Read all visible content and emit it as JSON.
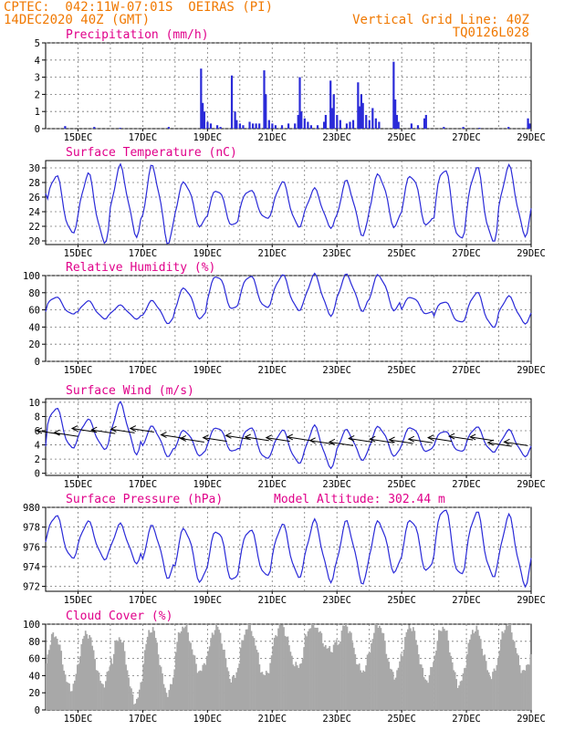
{
  "header": {
    "left_line1": "CPTEC:  042:11W-07:01S  OEIRAS (PI)",
    "left_line2": "14DEC2020 40Z (GMT)",
    "right_line1": "Vertical Grid Line: 40Z",
    "right_line2": "TQ0126L028"
  },
  "colors": {
    "header": "#f07800",
    "title": "#e0008a",
    "series": "#2a2ad8",
    "cloud": "#a8a8a8"
  },
  "x_ticks": [
    "15DEC",
    "17DEC",
    "19DEC",
    "21DEC",
    "23DEC",
    "25DEC",
    "27DEC",
    "29DEC"
  ],
  "chart_data": [
    {
      "type": "bar",
      "title": "Precipitation (mm/h)",
      "ylim": [
        0,
        5
      ],
      "yticks": [
        0,
        1,
        2,
        3,
        4,
        5
      ],
      "x_domain": [
        14.0,
        29.0
      ],
      "bars": [
        [
          14.6,
          0.15
        ],
        [
          15.5,
          0.1
        ],
        [
          16.3,
          0.05
        ],
        [
          17.8,
          0.1
        ],
        [
          18.8,
          3.5
        ],
        [
          18.85,
          1.5
        ],
        [
          18.9,
          1.0
        ],
        [
          19.0,
          0.4
        ],
        [
          19.1,
          0.3
        ],
        [
          19.3,
          0.2
        ],
        [
          19.4,
          0.1
        ],
        [
          19.75,
          3.1
        ],
        [
          19.85,
          1.0
        ],
        [
          19.9,
          0.5
        ],
        [
          20.0,
          0.3
        ],
        [
          20.1,
          0.2
        ],
        [
          20.3,
          0.4
        ],
        [
          20.4,
          0.3
        ],
        [
          20.5,
          0.3
        ],
        [
          20.6,
          0.3
        ],
        [
          20.75,
          3.4
        ],
        [
          20.8,
          2.0
        ],
        [
          20.9,
          0.5
        ],
        [
          21.0,
          0.3
        ],
        [
          21.1,
          0.2
        ],
        [
          21.3,
          0.2
        ],
        [
          21.5,
          0.3
        ],
        [
          21.7,
          0.3
        ],
        [
          21.8,
          0.8
        ],
        [
          21.85,
          3.0
        ],
        [
          21.9,
          1.0
        ],
        [
          22.0,
          0.6
        ],
        [
          22.1,
          0.4
        ],
        [
          22.2,
          0.2
        ],
        [
          22.4,
          0.2
        ],
        [
          22.6,
          0.4
        ],
        [
          22.65,
          0.8
        ],
        [
          22.8,
          2.8
        ],
        [
          22.85,
          1.2
        ],
        [
          22.9,
          2.0
        ],
        [
          23.0,
          0.8
        ],
        [
          23.1,
          0.5
        ],
        [
          23.3,
          0.3
        ],
        [
          23.4,
          0.4
        ],
        [
          23.5,
          0.5
        ],
        [
          23.65,
          2.7
        ],
        [
          23.7,
          1.3
        ],
        [
          23.75,
          2.0
        ],
        [
          23.8,
          1.5
        ],
        [
          23.9,
          0.8
        ],
        [
          24.0,
          0.5
        ],
        [
          24.1,
          1.2
        ],
        [
          24.2,
          0.6
        ],
        [
          24.3,
          0.4
        ],
        [
          24.75,
          3.9
        ],
        [
          24.8,
          1.7
        ],
        [
          24.85,
          0.8
        ],
        [
          24.9,
          0.4
        ],
        [
          25.3,
          0.3
        ],
        [
          25.5,
          0.2
        ],
        [
          25.7,
          0.6
        ],
        [
          25.75,
          0.8
        ],
        [
          26.3,
          0.1
        ],
        [
          26.9,
          0.1
        ],
        [
          27.4,
          0.05
        ],
        [
          28.3,
          0.1
        ],
        [
          28.9,
          0.6
        ],
        [
          28.95,
          0.3
        ]
      ],
      "gridlines_vertical": "dashed at 40Z each day"
    },
    {
      "type": "line",
      "title": "Surface Temperature (nC)",
      "ylim": [
        19.5,
        31
      ],
      "yticks": [
        20,
        22,
        24,
        26,
        28,
        30
      ],
      "x_domain": [
        14.0,
        29.0
      ],
      "series": [
        {
          "daily_max": [
            29,
            29,
            30,
            30,
            28,
            27,
            27,
            28,
            27,
            28,
            29,
            29,
            30,
            30,
            30
          ],
          "daily_min": [
            21,
            20,
            21,
            20,
            22,
            22,
            23,
            22,
            22,
            21,
            22,
            22,
            20,
            20,
            21
          ]
        }
      ],
      "x_start": 14.0,
      "start_value": 26.5
    },
    {
      "type": "line",
      "title": "Relative Humidity (%)",
      "ylim": [
        0,
        100
      ],
      "yticks": [
        0,
        20,
        40,
        60,
        80,
        100
      ],
      "x_domain": [
        14.0,
        29.0
      ],
      "series": [
        {
          "daily_max": [
            75,
            70,
            65,
            70,
            85,
            100,
            100,
            100,
            100,
            100,
            100,
            75,
            70,
            80,
            75
          ],
          "daily_min": [
            55,
            50,
            50,
            45,
            50,
            60,
            62,
            60,
            55,
            60,
            60,
            55,
            45,
            40,
            45
          ]
        }
      ],
      "x_start": 14.0,
      "start_value": 58
    },
    {
      "type": "line",
      "title": "Surface Wind (m/s)",
      "ylim": [
        -0.3,
        10.5
      ],
      "yticks": [
        0,
        2,
        4,
        6,
        8,
        10
      ],
      "x_domain": [
        14.0,
        29.0
      ],
      "series": [
        {
          "daily_max": [
            9.2,
            7.5,
            9.7,
            6.5,
            6.0,
            6.5,
            6.5,
            6.0,
            6.5,
            6.0,
            6.5,
            6.5,
            6.0,
            6.5,
            6.0
          ],
          "daily_min": [
            3.5,
            3.5,
            3.0,
            2.5,
            2.5,
            3.0,
            2.0,
            1.5,
            1.0,
            2.0,
            2.5,
            3.0,
            3.0,
            3.0,
            2.5
          ]
        }
      ],
      "x_start": 14.0,
      "start_value": 3.8,
      "wind_arrows": [
        [
          14.45,
          5.5,
          -1
        ],
        [
          15.0,
          5.2,
          -1
        ],
        [
          15.55,
          5.8,
          -1
        ],
        [
          16.15,
          5.6,
          -1
        ],
        [
          16.75,
          5.7,
          -1
        ],
        [
          17.35,
          5.8,
          -1
        ],
        [
          18.3,
          4.9,
          -1
        ],
        [
          18.9,
          4.4,
          -1
        ],
        [
          19.6,
          4.5,
          -1
        ],
        [
          20.3,
          4.8,
          -1
        ],
        [
          20.9,
          4.6,
          -1
        ],
        [
          21.55,
          4.5,
          -1
        ],
        [
          22.2,
          4.6,
          -1
        ],
        [
          22.9,
          4.1,
          -1
        ],
        [
          23.5,
          3.9,
          -1
        ],
        [
          24.1,
          4.4,
          -1
        ],
        [
          24.75,
          4.3,
          -1
        ],
        [
          25.35,
          4.2,
          -1
        ],
        [
          25.95,
          4.3,
          -1
        ],
        [
          26.55,
          4.5,
          -1
        ],
        [
          27.2,
          4.7,
          -1
        ],
        [
          27.85,
          4.6,
          -1
        ],
        [
          28.4,
          3.8,
          -1
        ],
        [
          28.9,
          3.9,
          -1
        ]
      ]
    },
    {
      "type": "line",
      "title": "Surface Pressure (hPa)",
      "annotation": "Model Altitude: 302.44 m",
      "ylim": [
        971.5,
        980
      ],
      "yticks": [
        972,
        974,
        976,
        978,
        980
      ],
      "x_domain": [
        14.0,
        29.0
      ],
      "series": [
        {
          "daily_max": [
            979.2,
            978.5,
            978.2,
            978.0,
            977.8,
            977.7,
            977.8,
            978.2,
            978.5,
            978.4,
            978.5,
            978.8,
            980.0,
            979.5,
            979.0
          ],
          "daily_min": [
            974.8,
            974.8,
            974.5,
            973.0,
            972.5,
            972.5,
            973.0,
            973.0,
            972.7,
            972.5,
            973.5,
            973.5,
            973.0,
            973.0,
            972.3
          ]
        }
      ],
      "x_start": 14.0,
      "start_value": 976.5
    },
    {
      "type": "area",
      "title": "Cloud Cover (%)",
      "ylim": [
        0,
        100
      ],
      "yticks": [
        0,
        20,
        40,
        60,
        80,
        100
      ],
      "x_domain": [
        14.0,
        29.0
      ],
      "daily": [
        [
          88,
          25
        ],
        [
          90,
          30
        ],
        [
          85,
          10
        ],
        [
          95,
          20
        ],
        [
          98,
          45
        ],
        [
          97,
          35
        ],
        [
          98,
          40
        ],
        [
          99,
          50
        ],
        [
          100,
          70
        ],
        [
          99,
          45
        ],
        [
          100,
          40
        ],
        [
          98,
          35
        ],
        [
          97,
          30
        ],
        [
          95,
          40
        ],
        [
          100,
          45
        ]
      ],
      "x_start": 14.0
    }
  ]
}
